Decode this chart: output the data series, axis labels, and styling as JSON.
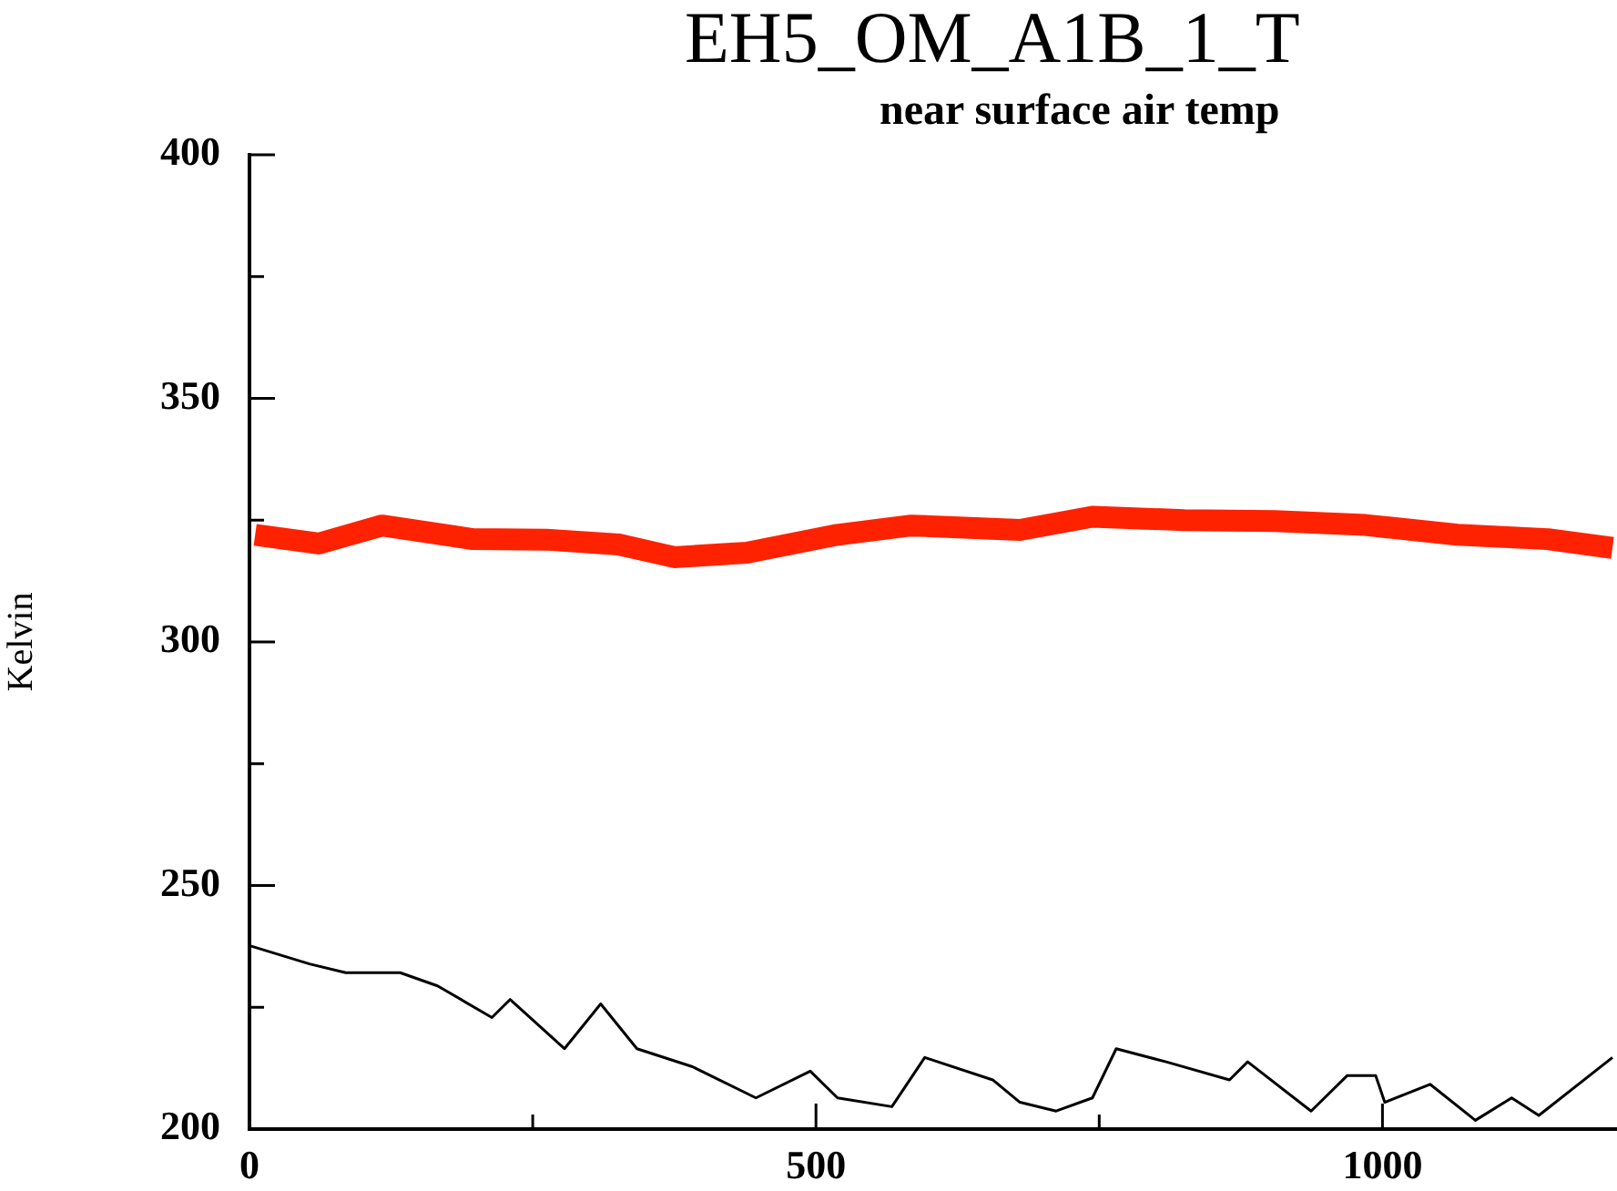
{
  "chart_data": {
    "type": "line",
    "title": "EH5_OM_A1B_1_T",
    "subtitle": "near surface air temp",
    "ylabel": "Kelvin",
    "xlim": [
      0,
      1207
    ],
    "xticks": [
      0,
      {
        "value": 250,
        "label": null
      },
      500,
      {
        "value": 750,
        "label": null
      },
      1000
    ],
    "ylim": [
      200,
      400
    ],
    "yticks": [
      200,
      {
        "value": 225,
        "label": null
      },
      250,
      {
        "value": 275,
        "label": null
      },
      300,
      {
        "value": 325,
        "label": null
      },
      350,
      {
        "value": 375,
        "label": null
      },
      400
    ],
    "series": [
      {
        "color": "#ff2200",
        "x": [
          5,
          61,
          117,
          197,
          262,
          326,
          375,
          439,
          519,
          584,
          680,
          744,
          825,
          905,
          985,
          1066,
          1146,
          1203
        ],
        "values": [
          322,
          320.2,
          323.9,
          321.1,
          321,
          320,
          317.4,
          318.3,
          322,
          323.9,
          323,
          325.7,
          325,
          324.8,
          324,
          322,
          321.1,
          319.3
        ]
      },
      {
        "color": "#000000",
        "x": [
          1,
          53,
          85,
          133,
          166,
          214,
          230,
          278,
          310,
          342,
          391,
          447,
          495,
          519,
          567,
          596,
          656,
          680,
          712,
          744,
          765,
          809,
          865,
          881,
          937,
          969,
          994,
          1002,
          1042,
          1082,
          1114,
          1138,
          1203
        ],
        "values": [
          237.6,
          233.9,
          232.1,
          232.1,
          229.4,
          222.9,
          226.6,
          216.5,
          225.7,
          216.5,
          212.8,
          206.4,
          211.9,
          206.4,
          204.6,
          214.7,
          210.1,
          205.5,
          203.7,
          206.4,
          216.5,
          213.8,
          210.1,
          213.8,
          203.7,
          211,
          211,
          205.5,
          209.2,
          201.8,
          206.4,
          202.8,
          214.7
        ]
      }
    ]
  }
}
